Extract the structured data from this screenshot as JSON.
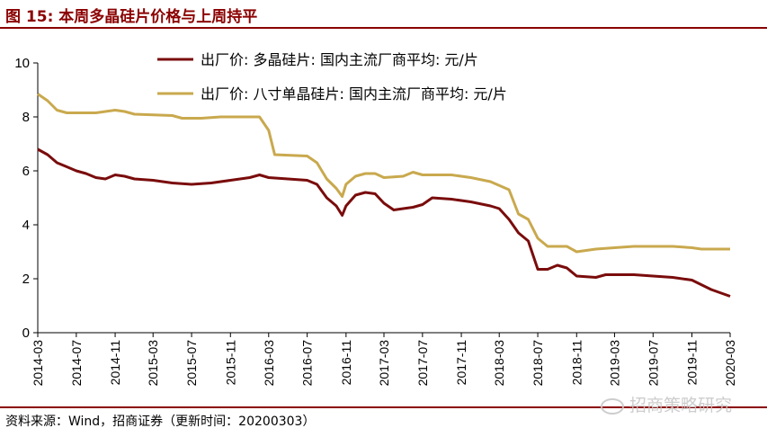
{
  "title": "图 15:  本周多晶硅片价格与上周持平",
  "source": "资料来源：Wind，招商证券（更新时间：20200303）",
  "watermark": "招商策略研究",
  "colors": {
    "accent": "#8b0000",
    "series1": "#7a0c0c",
    "series2": "#c9a94e"
  },
  "chart_data": {
    "type": "line",
    "ylim": [
      0,
      10
    ],
    "yticks": [
      0,
      2,
      4,
      6,
      8,
      10
    ],
    "xlim": [
      "2014-03",
      "2020-03"
    ],
    "xticks": [
      "2014-03",
      "2014-07",
      "2014-11",
      "2015-03",
      "2015-07",
      "2015-11",
      "2016-03",
      "2016-07",
      "2016-11",
      "2017-03",
      "2017-07",
      "2017-11",
      "2018-03",
      "2018-07",
      "2018-11",
      "2019-03",
      "2019-07",
      "2019-11",
      "2020-03"
    ],
    "grid": false,
    "legend": "top-right",
    "series": [
      {
        "name": "出厂价: 多晶硅片: 国内主流厂商平均: 元/片",
        "color": "#7a0c0c",
        "points": [
          [
            "2014-03-01",
            6.8
          ],
          [
            "2014-04-01",
            6.6
          ],
          [
            "2014-05-01",
            6.3
          ],
          [
            "2014-06-01",
            6.15
          ],
          [
            "2014-07-01",
            6.0
          ],
          [
            "2014-08-01",
            5.9
          ],
          [
            "2014-09-01",
            5.75
          ],
          [
            "2014-10-01",
            5.7
          ],
          [
            "2014-11-01",
            5.85
          ],
          [
            "2014-12-01",
            5.8
          ],
          [
            "2015-01-01",
            5.7
          ],
          [
            "2015-03-01",
            5.65
          ],
          [
            "2015-05-01",
            5.55
          ],
          [
            "2015-07-01",
            5.5
          ],
          [
            "2015-09-01",
            5.55
          ],
          [
            "2015-11-01",
            5.65
          ],
          [
            "2016-01-01",
            5.75
          ],
          [
            "2016-02-01",
            5.85
          ],
          [
            "2016-03-01",
            5.75
          ],
          [
            "2016-05-01",
            5.7
          ],
          [
            "2016-07-01",
            5.65
          ],
          [
            "2016-08-01",
            5.5
          ],
          [
            "2016-09-01",
            5.0
          ],
          [
            "2016-10-01",
            4.7
          ],
          [
            "2016-10-20",
            4.35
          ],
          [
            "2016-11-01",
            4.7
          ],
          [
            "2016-12-01",
            5.1
          ],
          [
            "2017-01-01",
            5.2
          ],
          [
            "2017-02-01",
            5.15
          ],
          [
            "2017-03-01",
            4.8
          ],
          [
            "2017-04-01",
            4.55
          ],
          [
            "2017-05-01",
            4.6
          ],
          [
            "2017-06-01",
            4.65
          ],
          [
            "2017-07-01",
            4.75
          ],
          [
            "2017-08-01",
            5.0
          ],
          [
            "2017-10-01",
            4.95
          ],
          [
            "2017-12-01",
            4.85
          ],
          [
            "2018-02-01",
            4.7
          ],
          [
            "2018-03-01",
            4.6
          ],
          [
            "2018-04-01",
            4.2
          ],
          [
            "2018-05-01",
            3.7
          ],
          [
            "2018-06-01",
            3.4
          ],
          [
            "2018-07-01",
            2.35
          ],
          [
            "2018-08-01",
            2.35
          ],
          [
            "2018-09-01",
            2.5
          ],
          [
            "2018-10-01",
            2.4
          ],
          [
            "2018-11-01",
            2.1
          ],
          [
            "2019-01-01",
            2.05
          ],
          [
            "2019-02-01",
            2.15
          ],
          [
            "2019-05-01",
            2.15
          ],
          [
            "2019-07-01",
            2.1
          ],
          [
            "2019-09-01",
            2.05
          ],
          [
            "2019-11-01",
            1.95
          ],
          [
            "2020-01-01",
            1.6
          ],
          [
            "2020-03-01",
            1.35
          ]
        ]
      },
      {
        "name": "出厂价: 八寸单晶硅片: 国内主流厂商平均: 元/片",
        "color": "#c9a94e",
        "points": [
          [
            "2014-03-01",
            8.85
          ],
          [
            "2014-04-01",
            8.6
          ],
          [
            "2014-05-01",
            8.25
          ],
          [
            "2014-06-01",
            8.15
          ],
          [
            "2014-09-01",
            8.15
          ],
          [
            "2014-11-01",
            8.25
          ],
          [
            "2014-12-01",
            8.2
          ],
          [
            "2015-01-01",
            8.1
          ],
          [
            "2015-05-01",
            8.05
          ],
          [
            "2015-06-01",
            7.95
          ],
          [
            "2015-08-01",
            7.95
          ],
          [
            "2015-10-01",
            8.0
          ],
          [
            "2016-02-01",
            8.0
          ],
          [
            "2016-03-01",
            7.5
          ],
          [
            "2016-03-20",
            6.6
          ],
          [
            "2016-07-01",
            6.55
          ],
          [
            "2016-08-01",
            6.3
          ],
          [
            "2016-09-01",
            5.7
          ],
          [
            "2016-10-01",
            5.35
          ],
          [
            "2016-10-20",
            5.05
          ],
          [
            "2016-11-01",
            5.5
          ],
          [
            "2016-12-01",
            5.8
          ],
          [
            "2017-01-01",
            5.9
          ],
          [
            "2017-02-01",
            5.9
          ],
          [
            "2017-03-01",
            5.75
          ],
          [
            "2017-05-01",
            5.8
          ],
          [
            "2017-06-01",
            5.95
          ],
          [
            "2017-07-01",
            5.85
          ],
          [
            "2017-10-01",
            5.85
          ],
          [
            "2017-12-01",
            5.75
          ],
          [
            "2018-02-01",
            5.6
          ],
          [
            "2018-04-01",
            5.3
          ],
          [
            "2018-05-01",
            4.4
          ],
          [
            "2018-06-01",
            4.2
          ],
          [
            "2018-07-01",
            3.5
          ],
          [
            "2018-08-01",
            3.2
          ],
          [
            "2018-10-01",
            3.2
          ],
          [
            "2018-11-01",
            3.0
          ],
          [
            "2019-01-01",
            3.1
          ],
          [
            "2019-03-01",
            3.15
          ],
          [
            "2019-05-01",
            3.2
          ],
          [
            "2019-09-01",
            3.2
          ],
          [
            "2019-11-01",
            3.15
          ],
          [
            "2019-12-01",
            3.1
          ],
          [
            "2020-03-01",
            3.1
          ]
        ]
      }
    ]
  }
}
